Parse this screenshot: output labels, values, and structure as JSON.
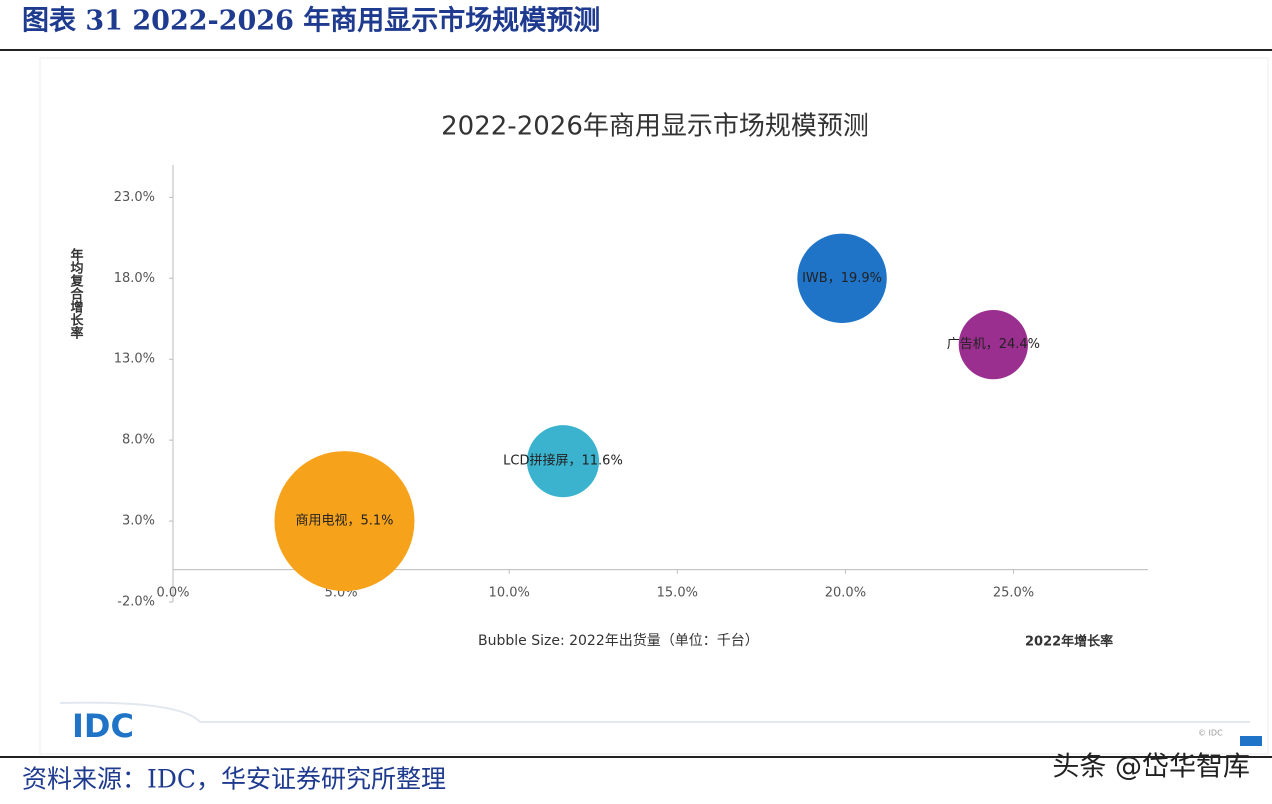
{
  "header": {
    "title": "图表 31 2022-2026 年商用显示市场规模预测"
  },
  "chart_data": {
    "type": "bubble",
    "title": "2022-2026年商用显示市场规模预测",
    "y_label": "年均复合增长率",
    "x_label": "2022年增长率",
    "size_note": "Bubble Size: 2022年出货量（单位：千台）",
    "x": [
      5.1,
      11.6,
      19.9,
      24.4
    ],
    "values": [
      3.0,
      6.7,
      18.0,
      13.9
    ],
    "sizes": [
      49,
      13,
      20,
      12
    ],
    "colors": [
      "#f7a21b",
      "#3bb3cf",
      "#1f74c8",
      "#9b2f8f"
    ],
    "value_labels": [
      "商用电视，5.1%",
      "LCD拼接屏，11.6%",
      "IWB，19.9%",
      "广告机，24.4%"
    ],
    "xlim": [
      0,
      29
    ],
    "ylim": [
      -2,
      25
    ],
    "xticks": [
      {
        "value": 0,
        "label": "0.0%"
      },
      {
        "value": 5,
        "label": "5.0%"
      },
      {
        "value": 10,
        "label": "10.0%"
      },
      {
        "value": 15,
        "label": "15.0%"
      },
      {
        "value": 20,
        "label": "20.0%"
      },
      {
        "value": 25,
        "label": "25.0%"
      }
    ],
    "yticks": [
      {
        "value": -2,
        "label": "-2.0%"
      },
      {
        "value": 3,
        "label": "3.0%"
      },
      {
        "value": 8,
        "label": "8.0%"
      },
      {
        "value": 13,
        "label": "13.0%"
      },
      {
        "value": 18,
        "label": "18.0%"
      },
      {
        "value": 23,
        "label": "23.0%"
      }
    ],
    "logo": "IDC",
    "copyright": "© IDC"
  },
  "source": "资料来源：IDC，华安证券研究所整理",
  "watermark": "头条 @岱华智库"
}
